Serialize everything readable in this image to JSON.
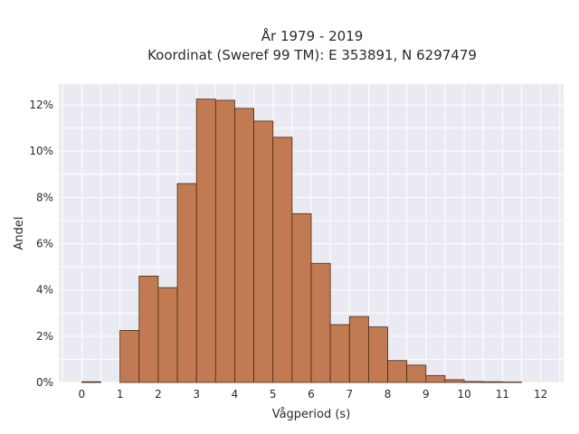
{
  "chart_data": {
    "type": "bar",
    "title": "År 1979 - 2019",
    "subtitle": "Koordinat (Sweref 99 TM): E 353891, N 6297479",
    "xlabel": "Vågperiod (s)",
    "ylabel": "Andel",
    "xlim": [
      -0.6,
      12.6
    ],
    "ylim": [
      0,
      12.9
    ],
    "x_ticks": [
      0,
      1,
      2,
      3,
      4,
      5,
      6,
      7,
      8,
      9,
      10,
      11,
      12
    ],
    "y_ticks": [
      0,
      2,
      4,
      6,
      8,
      10,
      12
    ],
    "y_tick_labels": [
      "0%",
      "2%",
      "4%",
      "6%",
      "8%",
      "10%",
      "12%"
    ],
    "bin_width": 0.5,
    "bins": [
      {
        "start": 0.0,
        "value": 0.03
      },
      {
        "start": 0.5,
        "value": 0.0
      },
      {
        "start": 1.0,
        "value": 2.25
      },
      {
        "start": 1.5,
        "value": 4.6
      },
      {
        "start": 2.0,
        "value": 4.1
      },
      {
        "start": 2.5,
        "value": 8.6
      },
      {
        "start": 3.0,
        "value": 12.25
      },
      {
        "start": 3.5,
        "value": 12.2
      },
      {
        "start": 4.0,
        "value": 11.85
      },
      {
        "start": 4.5,
        "value": 11.3
      },
      {
        "start": 5.0,
        "value": 10.6
      },
      {
        "start": 5.5,
        "value": 7.3
      },
      {
        "start": 6.0,
        "value": 5.15
      },
      {
        "start": 6.5,
        "value": 2.5
      },
      {
        "start": 7.0,
        "value": 2.85
      },
      {
        "start": 7.5,
        "value": 2.4
      },
      {
        "start": 8.0,
        "value": 0.95
      },
      {
        "start": 8.5,
        "value": 0.75
      },
      {
        "start": 9.0,
        "value": 0.3
      },
      {
        "start": 9.5,
        "value": 0.12
      },
      {
        "start": 10.0,
        "value": 0.04
      },
      {
        "start": 10.5,
        "value": 0.03
      },
      {
        "start": 11.0,
        "value": 0.02
      }
    ],
    "grid": true,
    "colors": {
      "bar_fill": "#c27a52",
      "bar_edge": "#4a2a18",
      "plot_background": "#eaeaf2"
    }
  }
}
